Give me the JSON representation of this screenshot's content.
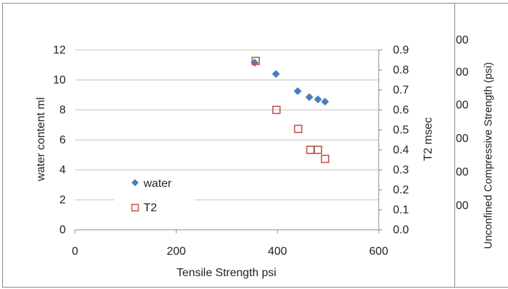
{
  "chart_data": [
    {
      "type": "scatter",
      "xlabel": "Tensile Strength  psi",
      "ylabel": "water content ml",
      "y2label": "T2  msec",
      "xlim": [
        0,
        600
      ],
      "ylim": [
        0,
        12
      ],
      "y2lim": [
        0.0,
        0.9
      ],
      "x_ticks": [
        "0",
        "200",
        "400",
        "600"
      ],
      "y_ticks": [
        "0",
        "2",
        "4",
        "6",
        "8",
        "10",
        "12"
      ],
      "y2_ticks": [
        "0.0",
        "0.1",
        "0.2",
        "0.3",
        "0.4",
        "0.5",
        "0.6",
        "0.7",
        "0.8",
        "0.9"
      ],
      "grid": true,
      "legend_position": "lower-left",
      "series": [
        {
          "name": "water",
          "axis": "left",
          "marker": "diamond",
          "color": "#4a7ebb",
          "points": [
            {
              "x": 355,
              "y": 11.15
            },
            {
              "x": 397,
              "y": 10.4
            },
            {
              "x": 440,
              "y": 9.25
            },
            {
              "x": 463,
              "y": 8.85
            },
            {
              "x": 480,
              "y": 8.7
            },
            {
              "x": 494,
              "y": 8.55
            }
          ]
        },
        {
          "name": "T2",
          "axis": "right",
          "marker": "square",
          "color": "#c0504d",
          "points": [
            {
              "x": 357,
              "y": 0.845
            },
            {
              "x": 398,
              "y": 0.6
            },
            {
              "x": 441,
              "y": 0.505
            },
            {
              "x": 465,
              "y": 0.4
            },
            {
              "x": 480,
              "y": 0.4
            },
            {
              "x": 494,
              "y": 0.355
            }
          ]
        }
      ]
    },
    {
      "type": "scatter",
      "ylabel": "Unconfined Compressive Strength (psi)",
      "y_ticks_partial": [
        "00",
        "00",
        "00",
        "00",
        "00",
        "00"
      ]
    }
  ]
}
